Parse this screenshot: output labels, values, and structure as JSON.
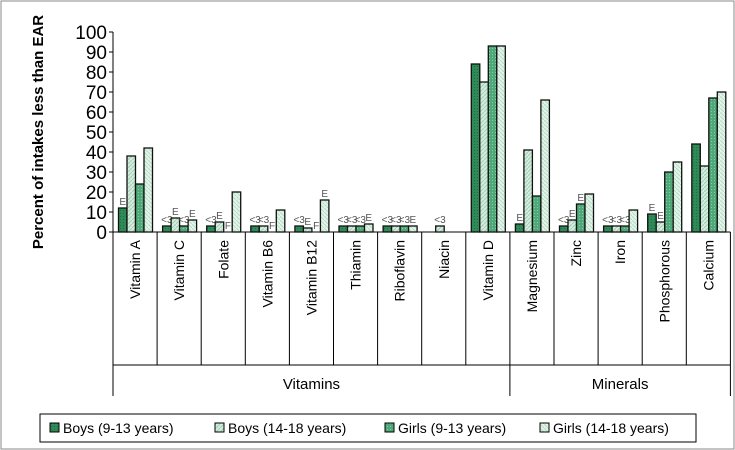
{
  "chart_data": {
    "type": "bar",
    "ylabel": "Percent of intakes less than EAR",
    "ylim": [
      0,
      100
    ],
    "yticks": [
      0,
      10,
      20,
      30,
      40,
      50,
      60,
      70,
      80,
      90,
      100
    ],
    "categories": [
      "Vitamin A",
      "Vitamin C",
      "Folate",
      "Vitamin B6",
      "Vitamin B12",
      "Thiamin",
      "Riboflavin",
      "Niacin",
      "Vitamin D",
      "Magnesium",
      "Zinc",
      "Iron",
      "Phosphorous",
      "Calcium"
    ],
    "category_marks": {
      "Vitamin D": "*"
    },
    "groups": [
      {
        "label": "Vitamins",
        "categories": [
          "Vitamin A",
          "Vitamin C",
          "Folate",
          "Vitamin B6",
          "Vitamin B12",
          "Thiamin",
          "Riboflavin",
          "Niacin",
          "Vitamin D"
        ]
      },
      {
        "label": "Minerals",
        "categories": [
          "Magnesium",
          "Zinc",
          "Iron",
          "Phosphorous",
          "Calcium"
        ]
      }
    ],
    "series": [
      {
        "name": "Boys (9-13 years)",
        "color": "#2e8b57",
        "values": [
          12,
          3,
          3,
          3,
          3,
          3,
          3,
          0,
          84,
          4,
          3,
          3,
          9,
          44
        ],
        "flags": [
          "E",
          "<3",
          "<3",
          "<3",
          "<3",
          "<3",
          "<3",
          "",
          "",
          "E",
          "<3",
          "<3",
          "E",
          ""
        ]
      },
      {
        "name": "Boys (14-18 years)",
        "color": "#cfe8d9",
        "values": [
          38,
          7,
          5,
          3,
          2,
          3,
          3,
          3,
          75,
          41,
          6,
          3,
          5,
          33
        ],
        "flags": [
          "",
          "E",
          "E",
          "<3",
          "E",
          "<3",
          "<3",
          "<3",
          "",
          "",
          "E",
          "<3",
          "E",
          ""
        ]
      },
      {
        "name": "Girls (9-13 years)",
        "color": "#4fa877",
        "values": [
          24,
          3,
          0,
          0,
          0,
          3,
          3,
          0,
          93,
          18,
          14,
          3,
          30,
          67
        ],
        "flags": [
          "",
          "<3",
          "F",
          "F",
          "F",
          "<3",
          "<3",
          "",
          "",
          "",
          "E",
          "<3",
          "",
          ""
        ]
      },
      {
        "name": "Girls (14-18 years)",
        "color": "#dcf0e4",
        "values": [
          42,
          6,
          20,
          11,
          16,
          4,
          3,
          0,
          93,
          66,
          19,
          11,
          35,
          70
        ],
        "flags": [
          "",
          "E",
          "",
          "",
          "E",
          "E",
          "E",
          "",
          "",
          "",
          "",
          "",
          "",
          ""
        ]
      }
    ],
    "legend_position": "bottom",
    "grid": false
  }
}
